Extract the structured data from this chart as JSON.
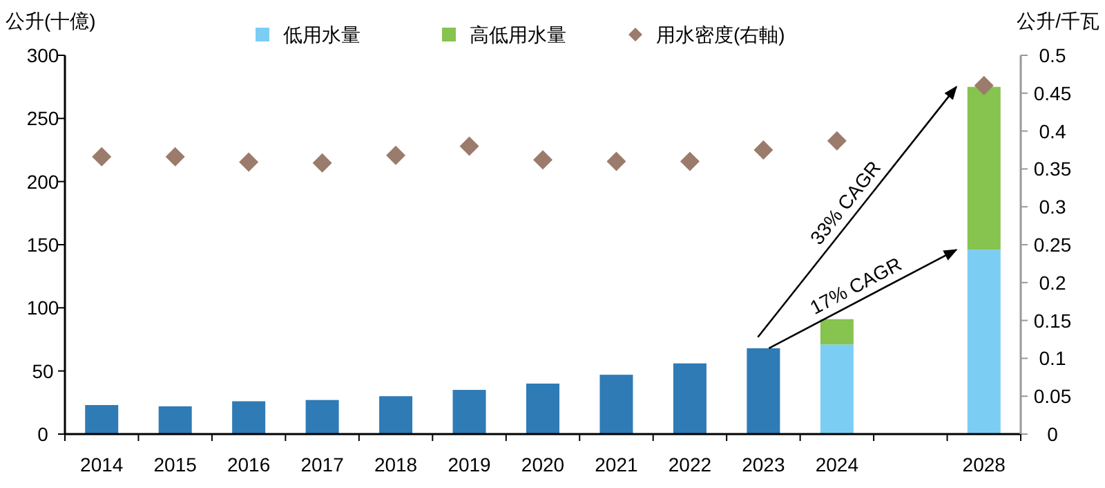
{
  "chart_data": {
    "type": "bar",
    "stacked": true,
    "legend": "top",
    "grid": false,
    "ylabel": "公升(十億)",
    "y2label": "公升/千瓦",
    "categories": [
      "2014",
      "2015",
      "2016",
      "2017",
      "2018",
      "2019",
      "2020",
      "2021",
      "2022",
      "2023",
      "2024",
      null,
      "2028"
    ],
    "ylim": [
      0,
      300
    ],
    "yticks": [
      0,
      50,
      100,
      150,
      200,
      250,
      300
    ],
    "y2lim": [
      0,
      0.5
    ],
    "y2ticks": [
      0,
      0.05,
      0.1,
      0.15,
      0.2,
      0.25,
      0.3,
      0.35,
      0.4,
      0.45,
      0.5
    ],
    "series": [
      {
        "color": "#2e7bb6",
        "values": [
          23,
          22,
          26,
          27,
          30,
          35,
          40,
          47,
          56,
          68,
          null,
          null,
          null
        ]
      },
      {
        "name": "低用水量",
        "color": "#7ccdf4",
        "values": [
          null,
          null,
          null,
          null,
          null,
          null,
          null,
          null,
          null,
          null,
          71,
          null,
          146
        ]
      },
      {
        "name": "高低用水量",
        "color": "#86c34f",
        "values": [
          null,
          null,
          null,
          null,
          null,
          null,
          null,
          null,
          null,
          null,
          20,
          null,
          129
        ]
      },
      {
        "name": "用水密度(右軸)",
        "type": "scatter",
        "axis": "y2",
        "marker": "diamond",
        "color": "#9b7b6b",
        "values": [
          0.366,
          0.366,
          0.359,
          0.358,
          0.368,
          0.38,
          0.362,
          0.36,
          0.36,
          0.375,
          0.387,
          null,
          0.46
        ]
      }
    ],
    "annotations": [
      "33% CAGR",
      "17% CAGR"
    ]
  }
}
